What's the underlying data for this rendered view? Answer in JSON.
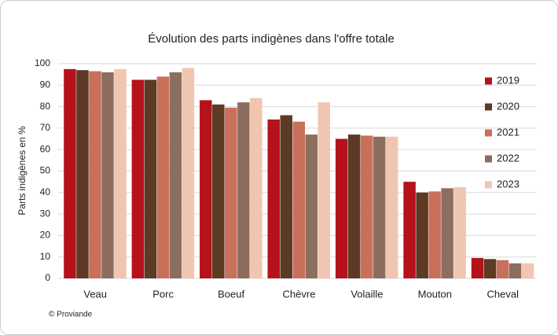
{
  "chart_data": {
    "type": "bar",
    "title": "Évolution des parts indigènes dans l'offre totale",
    "ylabel": "Parts indigènes en %",
    "source": "© Proviande",
    "categories": [
      "Veau",
      "Porc",
      "Boeuf",
      "Chèvre",
      "Volaille",
      "Mouton",
      "Cheval"
    ],
    "series": [
      {
        "name": "2019",
        "color": "#b5121b",
        "values": [
          97.5,
          92.5,
          83,
          74,
          65,
          45,
          9.5
        ]
      },
      {
        "name": "2020",
        "color": "#5c3a24",
        "values": [
          97,
          92.5,
          81,
          76,
          67,
          40,
          9
        ]
      },
      {
        "name": "2021",
        "color": "#c8705a",
        "values": [
          96.5,
          94,
          79.5,
          73,
          66.5,
          40.5,
          8.5
        ]
      },
      {
        "name": "2022",
        "color": "#8c6e60",
        "values": [
          96,
          96,
          82,
          67,
          66,
          42,
          7
        ]
      },
      {
        "name": "2023",
        "color": "#f0c6b0",
        "values": [
          97.5,
          98,
          84,
          82,
          66,
          42.5,
          7
        ]
      }
    ],
    "ylim": [
      0,
      100
    ],
    "yticks": [
      0,
      10,
      20,
      30,
      40,
      50,
      60,
      70,
      80,
      90,
      100
    ],
    "grid": true,
    "legend": "right"
  }
}
